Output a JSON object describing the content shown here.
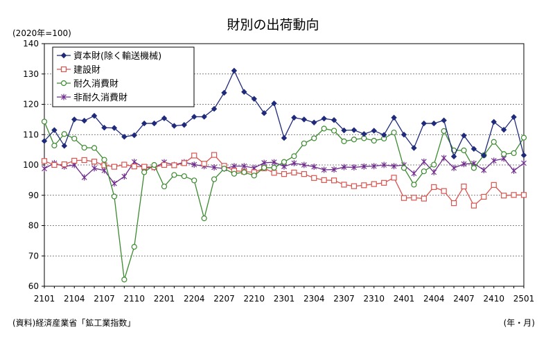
{
  "chart_data": {
    "type": "line",
    "title": "財別の出荷動向",
    "unit_note": "(2020年=100)",
    "source": "(資料)経済産業省「鉱工業指数」",
    "x_unit": "(年・月)",
    "ylim": [
      60,
      140
    ],
    "y_ticks": [
      "60",
      "70",
      "80",
      "90",
      "100",
      "110",
      "120",
      "130",
      "140"
    ],
    "x_tick_labels": [
      "2101",
      "2104",
      "2107",
      "2110",
      "2201",
      "2204",
      "2207",
      "2210",
      "2301",
      "2304",
      "2307",
      "2310",
      "2401",
      "2404",
      "2407",
      "2410",
      "2501"
    ],
    "x_tick_step": 3,
    "grid": "horizontal",
    "legend_position": "top-left",
    "series": [
      {
        "name": "資本財(除く輸送機械)",
        "color": "#1f2a7a",
        "marker": "diamond-filled",
        "values": [
          107.9,
          111.5,
          106.3,
          115.0,
          114.6,
          116.2,
          112.3,
          112.2,
          109.3,
          109.8,
          113.7,
          113.7,
          115.4,
          112.9,
          113.2,
          115.9,
          115.9,
          118.5,
          123.8,
          131.1,
          124.1,
          121.8,
          117.1,
          120.3,
          108.9,
          115.6,
          115.0,
          114.0,
          115.3,
          114.8,
          111.4,
          111.5,
          110.2,
          111.3,
          109.9,
          115.6,
          110.0,
          105.6,
          113.7,
          113.7,
          114.7,
          102.8,
          109.7,
          105.3,
          103.1,
          114.2,
          111.6,
          115.8,
          103.2
        ]
      },
      {
        "name": "建設財",
        "color": "#d9534f",
        "marker": "square-open",
        "values": [
          101.3,
          100.0,
          100.2,
          101.4,
          101.6,
          101.1,
          99.9,
          99.4,
          100.1,
          99.5,
          99.4,
          99.3,
          100.0,
          99.9,
          100.6,
          103.1,
          100.4,
          103.3,
          99.7,
          98.1,
          97.8,
          97.6,
          98.9,
          97.4,
          97.0,
          97.5,
          97.0,
          95.7,
          95.0,
          94.9,
          93.5,
          93.0,
          93.3,
          93.7,
          94.1,
          95.8,
          89.1,
          89.2,
          88.9,
          92.7,
          91.4,
          87.4,
          92.9,
          86.6,
          89.5,
          93.4,
          89.9,
          90.1,
          90.1
        ]
      },
      {
        "name": "耐久消費財",
        "color": "#3a8a2e",
        "marker": "circle-open",
        "values": [
          114.3,
          106.4,
          110.2,
          108.7,
          105.7,
          105.6,
          101.7,
          89.6,
          62.2,
          73.0,
          97.6,
          100.0,
          92.9,
          96.7,
          96.3,
          94.9,
          82.4,
          95.3,
          98.8,
          97.1,
          97.6,
          96.5,
          99.1,
          99.1,
          101.0,
          102.9,
          107.1,
          108.8,
          112.0,
          111.3,
          107.8,
          108.4,
          108.8,
          108.0,
          108.7,
          110.7,
          99.0,
          93.5,
          97.9,
          100.1,
          111.2,
          104.8,
          104.8,
          99.0,
          103.2,
          107.6,
          103.6,
          103.9,
          109.0
        ]
      },
      {
        "name": "非耐久消費財",
        "color": "#6e2c8c",
        "marker": "asterisk",
        "values": [
          98.8,
          100.6,
          99.5,
          100.0,
          95.9,
          98.9,
          98.2,
          93.9,
          96.2,
          101.0,
          99.1,
          99.1,
          100.9,
          100.0,
          100.9,
          100.1,
          99.6,
          99.2,
          98.8,
          99.6,
          99.6,
          99.0,
          100.7,
          100.9,
          99.5,
          100.6,
          100.0,
          99.4,
          98.4,
          98.5,
          99.3,
          99.2,
          99.5,
          99.6,
          100.0,
          99.6,
          100.0,
          97.2,
          101.1,
          97.6,
          102.3,
          99.0,
          100.3,
          100.5,
          98.3,
          101.4,
          102.1,
          98.1,
          100.6
        ]
      }
    ]
  }
}
